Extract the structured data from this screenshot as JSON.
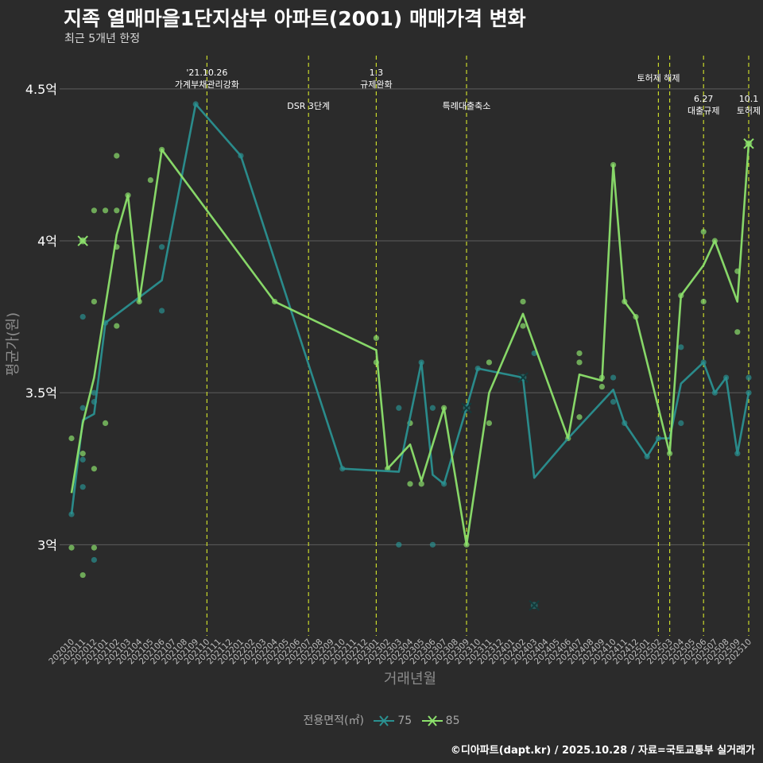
{
  "title": "지족 열매마을1단지삼부 아파트(2001) 매매가격 변화",
  "subtitle": "최근 5개년 한정",
  "caption": "©디아파트(dapt.kr) / 2025.10.28 / 자료=국토교통부 실거래가",
  "colors": {
    "background": "#2b2b2b",
    "grid": "#5e5e5e",
    "s75": "#2a9090",
    "s85": "#8ce06c",
    "vline": "#c8d82a"
  },
  "chart_data": {
    "type": "line",
    "xlabel": "거래년월",
    "ylabel": "평균가(원)",
    "ylim": [
      2.7,
      4.62
    ],
    "yticks": [
      {
        "v": 3.0,
        "label": "3억"
      },
      {
        "v": 3.5,
        "label": "3.5억"
      },
      {
        "v": 4.0,
        "label": "4억"
      },
      {
        "v": 4.5,
        "label": "4.5억"
      }
    ],
    "categories": [
      "202010",
      "202011",
      "202012",
      "202101",
      "202102",
      "202103",
      "202104",
      "202105",
      "202106",
      "202107",
      "202108",
      "202109",
      "202110",
      "202111",
      "202112",
      "202201",
      "202202",
      "202203",
      "202204",
      "202205",
      "202206",
      "202207",
      "202208",
      "202209",
      "202210",
      "202211",
      "202212",
      "202301",
      "202302",
      "202303",
      "202304",
      "202305",
      "202306",
      "202307",
      "202308",
      "202309",
      "202310",
      "202311",
      "202312",
      "202401",
      "202402",
      "202403",
      "202404",
      "202405",
      "202406",
      "202407",
      "202408",
      "202409",
      "202410",
      "202411",
      "202412",
      "202501",
      "202502",
      "202503",
      "202504",
      "202505",
      "202506",
      "202507",
      "202508",
      "202509",
      "202510"
    ],
    "legend_title": "전용면적(㎡)",
    "series": [
      {
        "name": "75",
        "line": [
          [
            "202010",
            3.1
          ],
          [
            "202011",
            3.41
          ],
          [
            "202012",
            3.43
          ],
          [
            "202101",
            3.73
          ],
          [
            "202106",
            3.87
          ],
          [
            "202109",
            4.45
          ],
          [
            "202201",
            4.28
          ],
          [
            "202210",
            3.25
          ],
          [
            "202303",
            3.24
          ],
          [
            "202305",
            3.6
          ],
          [
            "202306",
            3.23
          ],
          [
            "202307",
            3.2
          ],
          [
            "202309",
            3.45
          ],
          [
            "202310",
            3.58
          ],
          [
            "202402",
            3.55
          ],
          [
            "202403",
            3.22
          ],
          [
            "202406",
            3.35
          ],
          [
            "202410",
            3.51
          ],
          [
            "202411",
            3.4
          ],
          [
            "202501",
            3.29
          ],
          [
            "202502",
            3.35
          ],
          [
            "202503",
            3.35
          ],
          [
            "202504",
            3.53
          ],
          [
            "202506",
            3.6
          ],
          [
            "202507",
            3.5
          ],
          [
            "202508",
            3.55
          ],
          [
            "202509",
            3.3
          ],
          [
            "202510",
            3.5
          ]
        ],
        "points": [
          [
            "202010",
            3.1
          ],
          [
            "202011",
            3.45
          ],
          [
            "202011",
            3.28
          ],
          [
            "202011",
            3.19
          ],
          [
            "202011",
            3.75
          ],
          [
            "202012",
            3.5
          ],
          [
            "202012",
            3.47
          ],
          [
            "202012",
            2.95
          ],
          [
            "202101",
            3.73
          ],
          [
            "202106",
            3.98
          ],
          [
            "202106",
            3.77
          ],
          [
            "202109",
            4.45
          ],
          [
            "202201",
            4.28
          ],
          [
            "202210",
            3.25
          ],
          [
            "202303",
            3.45
          ],
          [
            "202303",
            3.0
          ],
          [
            "202305",
            3.6
          ],
          [
            "202306",
            3.45
          ],
          [
            "202306",
            3.0
          ],
          [
            "202307",
            3.2
          ],
          [
            "202310",
            3.58
          ],
          [
            "202403",
            3.63
          ],
          [
            "202410",
            3.55
          ],
          [
            "202410",
            3.47
          ],
          [
            "202411",
            3.4
          ],
          [
            "202501",
            3.29
          ],
          [
            "202502",
            3.35
          ],
          [
            "202504",
            3.65
          ],
          [
            "202504",
            3.4
          ],
          [
            "202506",
            3.6
          ],
          [
            "202507",
            3.5
          ],
          [
            "202508",
            3.55
          ],
          [
            "202509",
            3.3
          ],
          [
            "202510",
            3.5
          ],
          [
            "202510",
            3.55
          ]
        ],
        "cross": [
          [
            "202309",
            3.45
          ],
          [
            "202402",
            3.55
          ],
          [
            "202403",
            2.8
          ]
        ]
      },
      {
        "name": "85",
        "line": [
          [
            "202010",
            3.17
          ],
          [
            "202011",
            3.4
          ],
          [
            "202012",
            3.55
          ],
          [
            "202102",
            4.02
          ],
          [
            "202103",
            4.15
          ],
          [
            "202104",
            3.8
          ],
          [
            "202106",
            4.3
          ],
          [
            "202204",
            3.8
          ],
          [
            "202301",
            3.64
          ],
          [
            "202302",
            3.25
          ],
          [
            "202304",
            3.33
          ],
          [
            "202305",
            3.21
          ],
          [
            "202307",
            3.45
          ],
          [
            "202309",
            3.0
          ],
          [
            "202311",
            3.5
          ],
          [
            "202402",
            3.76
          ],
          [
            "202406",
            3.35
          ],
          [
            "202407",
            3.56
          ],
          [
            "202409",
            3.54
          ],
          [
            "202410",
            4.25
          ],
          [
            "202411",
            3.8
          ],
          [
            "202412",
            3.75
          ],
          [
            "202503",
            3.3
          ],
          [
            "202504",
            3.82
          ],
          [
            "202506",
            3.92
          ],
          [
            "202507",
            4.0
          ],
          [
            "202509",
            3.8
          ],
          [
            "202510",
            4.32
          ]
        ],
        "points": [
          [
            "202010",
            3.35
          ],
          [
            "202010",
            2.99
          ],
          [
            "202011",
            4.0
          ],
          [
            "202011",
            3.3
          ],
          [
            "202011",
            2.9
          ],
          [
            "202012",
            4.1
          ],
          [
            "202012",
            3.8
          ],
          [
            "202012",
            3.25
          ],
          [
            "202012",
            2.99
          ],
          [
            "202101",
            4.1
          ],
          [
            "202101",
            3.4
          ],
          [
            "202102",
            4.28
          ],
          [
            "202102",
            4.1
          ],
          [
            "202102",
            3.98
          ],
          [
            "202102",
            3.72
          ],
          [
            "202103",
            4.15
          ],
          [
            "202104",
            3.8
          ],
          [
            "202105",
            4.2
          ],
          [
            "202106",
            4.3
          ],
          [
            "202204",
            3.8
          ],
          [
            "202301",
            3.68
          ],
          [
            "202301",
            3.6
          ],
          [
            "202302",
            3.25
          ],
          [
            "202304",
            3.4
          ],
          [
            "202304",
            3.2
          ],
          [
            "202305",
            3.2
          ],
          [
            "202307",
            3.45
          ],
          [
            "202309",
            3.0
          ],
          [
            "202311",
            3.6
          ],
          [
            "202311",
            3.4
          ],
          [
            "202402",
            3.8
          ],
          [
            "202402",
            3.72
          ],
          [
            "202406",
            3.35
          ],
          [
            "202407",
            3.63
          ],
          [
            "202407",
            3.6
          ],
          [
            "202407",
            3.42
          ],
          [
            "202409",
            3.55
          ],
          [
            "202409",
            3.52
          ],
          [
            "202410",
            4.25
          ],
          [
            "202411",
            3.8
          ],
          [
            "202412",
            3.75
          ],
          [
            "202503",
            3.3
          ],
          [
            "202504",
            3.82
          ],
          [
            "202506",
            4.03
          ],
          [
            "202506",
            3.8
          ],
          [
            "202507",
            4.0
          ],
          [
            "202509",
            3.9
          ],
          [
            "202509",
            3.7
          ],
          [
            "202510",
            4.32
          ]
        ],
        "cross": [
          [
            "202011",
            4.0
          ],
          [
            "202510",
            4.32
          ]
        ]
      }
    ],
    "annotations": [
      {
        "x": "202110",
        "lines": [
          "'21.10.26",
          "가계부채관리강화"
        ],
        "row": 0
      },
      {
        "x": "202207",
        "lines": [
          "DSR 3단계"
        ],
        "row": 2
      },
      {
        "x": "202301",
        "lines": [
          "1.3",
          "규제완화"
        ],
        "row": 0
      },
      {
        "x": "202309",
        "lines": [
          "특례대출축소"
        ],
        "row": 2
      },
      {
        "x": "202502",
        "lines": [
          "토허제 해제"
        ],
        "row": 1
      },
      {
        "x": "202503",
        "lines": [],
        "row": 0
      },
      {
        "x": "202506",
        "lines": [
          "6.27",
          "대출규제"
        ],
        "row": 3
      },
      {
        "x": "202510",
        "lines": [
          "10.1",
          "토허제"
        ],
        "row": 3
      }
    ]
  }
}
